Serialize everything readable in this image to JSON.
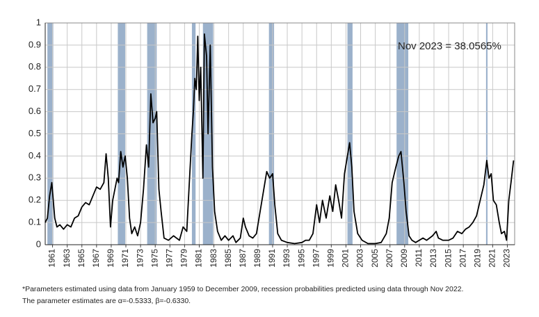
{
  "chart_data": {
    "type": "line",
    "annotation": "Nov 2023 = 38.0565%",
    "note": [
      "*Parameters estimated using data from January 1959 to December 2009, recession probabilities predicted using data through Nov 2022.",
      "The parameter estimates are α=-0.5333, β=-0.6330."
    ],
    "xlim": [
      1960,
      2024
    ],
    "xticks": [
      1961,
      1963,
      1965,
      1967,
      1969,
      1971,
      1973,
      1975,
      1977,
      1979,
      1981,
      1983,
      1985,
      1987,
      1989,
      1991,
      1993,
      1995,
      1997,
      1999,
      2001,
      2003,
      2005,
      2007,
      2009,
      2011,
      2013,
      2015,
      2017,
      2019,
      2021,
      2023
    ],
    "ylim": [
      0,
      1
    ],
    "yticks": [
      0,
      0.1,
      0.2,
      0.3,
      0.4,
      0.5,
      0.6,
      0.7,
      0.8,
      0.9,
      1
    ],
    "grid": true,
    "band_color": "#9bb1cb",
    "recessions": [
      {
        "start": 1960.3,
        "end": 1961.1
      },
      {
        "start": 1969.9,
        "end": 1970.9
      },
      {
        "start": 1973.9,
        "end": 1975.2
      },
      {
        "start": 1980.0,
        "end": 1980.5
      },
      {
        "start": 1981.5,
        "end": 1982.9
      },
      {
        "start": 1990.5,
        "end": 1991.2
      },
      {
        "start": 2001.2,
        "end": 2001.9
      },
      {
        "start": 2007.9,
        "end": 2009.5
      },
      {
        "start": 2020.1,
        "end": 2020.3
      }
    ],
    "series": [
      {
        "color": "#000000",
        "x": [
          1960.0,
          1960.3,
          1960.6,
          1960.9,
          1961.1,
          1961.3,
          1961.6,
          1962.0,
          1962.5,
          1963.0,
          1963.5,
          1964.0,
          1964.5,
          1965.0,
          1965.5,
          1966.0,
          1966.5,
          1967.0,
          1967.5,
          1968.0,
          1968.3,
          1968.6,
          1968.9,
          1969.2,
          1969.5,
          1969.8,
          1970.0,
          1970.3,
          1970.6,
          1970.9,
          1971.2,
          1971.5,
          1971.8,
          1972.2,
          1972.6,
          1973.0,
          1973.4,
          1973.8,
          1974.1,
          1974.4,
          1974.7,
          1975.0,
          1975.2,
          1975.5,
          1975.8,
          1976.2,
          1976.8,
          1977.5,
          1978.3,
          1978.8,
          1979.3,
          1979.6,
          1980.0,
          1980.2,
          1980.4,
          1980.6,
          1980.8,
          1981.0,
          1981.2,
          1981.5,
          1981.7,
          1982.0,
          1982.2,
          1982.5,
          1982.8,
          1983.1,
          1983.5,
          1984.0,
          1984.5,
          1985.0,
          1985.6,
          1986.0,
          1986.6,
          1987.0,
          1987.3,
          1987.8,
          1988.3,
          1988.8,
          1989.3,
          1989.8,
          1990.2,
          1990.6,
          1991.0,
          1991.3,
          1991.7,
          1992.2,
          1993.0,
          1994.0,
          1995.0,
          1995.5,
          1996.0,
          1996.5,
          1997.0,
          1997.4,
          1997.8,
          1998.3,
          1998.8,
          1999.2,
          1999.6,
          2000.0,
          2000.4,
          2000.8,
          2001.2,
          2001.5,
          2001.8,
          2002.1,
          2002.6,
          2003.2,
          2004.0,
          2005.0,
          2005.8,
          2006.5,
          2006.9,
          2007.3,
          2007.8,
          2008.2,
          2008.5,
          2008.9,
          2009.2,
          2009.6,
          2010.0,
          2010.5,
          2011.0,
          2011.5,
          2012.0,
          2012.8,
          2013.3,
          2013.6,
          2014.2,
          2015.0,
          2015.6,
          2016.2,
          2016.8,
          2017.3,
          2017.8,
          2018.3,
          2018.8,
          2019.3,
          2019.8,
          2020.2,
          2020.5,
          2020.8,
          2021.1,
          2021.5,
          2021.9,
          2022.2,
          2022.6,
          2022.9,
          2023.2,
          2023.5,
          2023.85
        ],
        "values": [
          0.1,
          0.12,
          0.22,
          0.28,
          0.2,
          0.12,
          0.08,
          0.09,
          0.07,
          0.09,
          0.08,
          0.12,
          0.13,
          0.17,
          0.19,
          0.18,
          0.22,
          0.26,
          0.25,
          0.28,
          0.41,
          0.3,
          0.08,
          0.2,
          0.25,
          0.3,
          0.28,
          0.42,
          0.35,
          0.4,
          0.3,
          0.12,
          0.05,
          0.08,
          0.04,
          0.1,
          0.25,
          0.45,
          0.35,
          0.68,
          0.55,
          0.57,
          0.6,
          0.25,
          0.15,
          0.03,
          0.02,
          0.04,
          0.02,
          0.08,
          0.06,
          0.25,
          0.5,
          0.6,
          0.75,
          0.7,
          0.94,
          0.65,
          0.8,
          0.3,
          0.95,
          0.85,
          0.5,
          0.9,
          0.35,
          0.15,
          0.06,
          0.02,
          0.04,
          0.02,
          0.04,
          0.01,
          0.03,
          0.12,
          0.08,
          0.04,
          0.03,
          0.05,
          0.15,
          0.25,
          0.33,
          0.3,
          0.32,
          0.18,
          0.05,
          0.02,
          0.01,
          0.005,
          0.01,
          0.02,
          0.02,
          0.05,
          0.18,
          0.1,
          0.2,
          0.12,
          0.22,
          0.15,
          0.27,
          0.2,
          0.12,
          0.32,
          0.4,
          0.46,
          0.35,
          0.15,
          0.05,
          0.02,
          0.005,
          0.005,
          0.01,
          0.05,
          0.12,
          0.28,
          0.35,
          0.4,
          0.42,
          0.28,
          0.15,
          0.04,
          0.02,
          0.01,
          0.02,
          0.03,
          0.02,
          0.04,
          0.06,
          0.03,
          0.02,
          0.02,
          0.03,
          0.06,
          0.05,
          0.07,
          0.08,
          0.1,
          0.13,
          0.2,
          0.27,
          0.38,
          0.3,
          0.32,
          0.2,
          0.18,
          0.1,
          0.05,
          0.06,
          0.02,
          0.2,
          0.28,
          0.38
        ]
      }
    ]
  }
}
